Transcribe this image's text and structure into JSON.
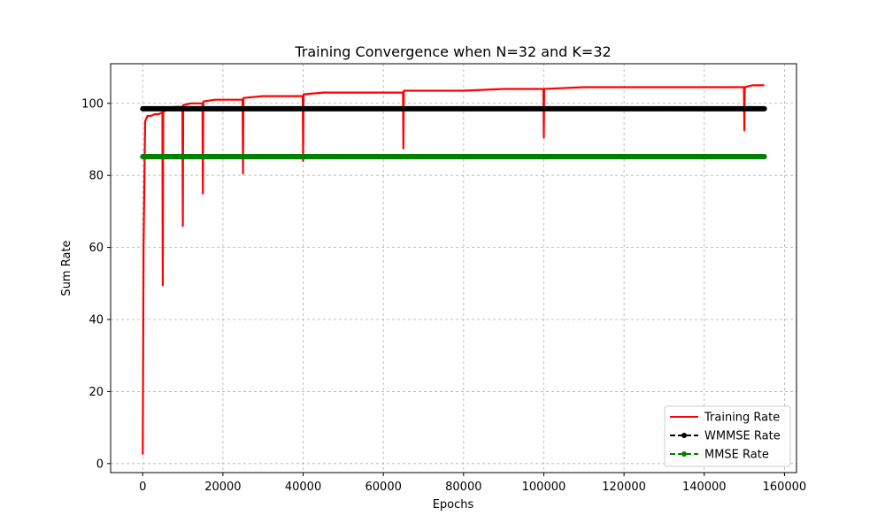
{
  "chart_data": {
    "type": "line",
    "title": "Training Convergence when N=32 and K=32",
    "xlabel": "Epochs",
    "ylabel": "Sum Rate",
    "xlim": [
      -8000,
      163000
    ],
    "ylim": [
      -2.5,
      111
    ],
    "x_ticks": [
      0,
      20000,
      40000,
      60000,
      80000,
      100000,
      120000,
      140000,
      160000
    ],
    "y_ticks": [
      0,
      20,
      40,
      60,
      80,
      100
    ],
    "grid": true,
    "legend_position": "bottom-right",
    "series": [
      {
        "name": "Training Rate",
        "color": "#ff0000",
        "style": "solid",
        "x": [
          0,
          200,
          600,
          1200,
          2000,
          3000,
          4000,
          4900,
          5000,
          5100,
          6000,
          8000,
          9900,
          10000,
          10100,
          12000,
          14900,
          15000,
          15100,
          18000,
          22000,
          24900,
          25000,
          25100,
          30000,
          35000,
          39900,
          40000,
          40100,
          45000,
          50000,
          55000,
          60000,
          64900,
          65000,
          65100,
          70000,
          80000,
          90000,
          99900,
          100000,
          100100,
          110000,
          120000,
          130000,
          140000,
          149900,
          150000,
          150100,
          152000,
          155000
        ],
        "y": [
          2.5,
          60,
          95,
          96.5,
          96.5,
          97,
          97,
          97.5,
          49.5,
          97.5,
          98.5,
          99,
          99,
          66,
          99.5,
          100,
          100,
          75,
          100.5,
          101,
          101,
          101,
          80.5,
          101.5,
          102,
          102,
          102,
          84,
          102.5,
          103,
          103,
          103,
          103,
          103,
          87.5,
          103.5,
          103.5,
          103.5,
          104,
          104,
          90.5,
          104,
          104.5,
          104.5,
          104.5,
          104.5,
          104.5,
          92.5,
          104.5,
          105,
          105
        ]
      },
      {
        "name": "WMMSE Rate",
        "color": "#000000",
        "style": "dashed-dot-markers",
        "x": [
          0,
          155000
        ],
        "y": [
          98.5,
          98.5
        ]
      },
      {
        "name": "MMSE Rate",
        "color": "#008000",
        "style": "dashed-dot-markers",
        "x": [
          0,
          155000
        ],
        "y": [
          85.2,
          85.2
        ]
      }
    ]
  }
}
